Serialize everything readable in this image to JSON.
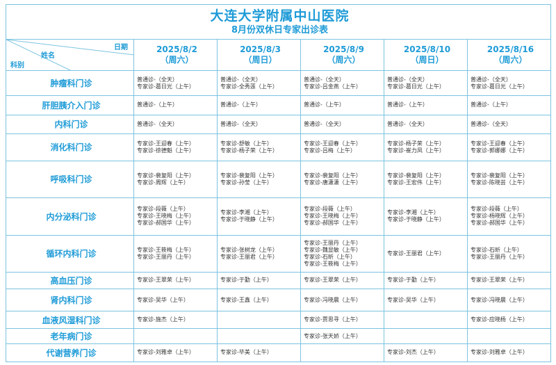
{
  "header": {
    "hospital": "大连大学附属中山医院",
    "subtitle": "8月份双休日专家出诊表"
  },
  "corner": {
    "date_label": "日期",
    "name_label": "姓名",
    "dept_label": "科别"
  },
  "dates": [
    {
      "date": "2025/8/2",
      "weekday": "（周六）"
    },
    {
      "date": "2025/8/3",
      "weekday": "（周日）"
    },
    {
      "date": "2025/8/9",
      "weekday": "（周六）"
    },
    {
      "date": "2025/8/10",
      "weekday": "（周日）"
    },
    {
      "date": "2025/8/16",
      "weekday": "（周六）"
    }
  ],
  "rows": [
    {
      "dept": "肿瘤科门诊",
      "cells": [
        [
          "普通诊-（全天）",
          "专家诊-葛日光（上午）"
        ],
        [
          "普通诊-（全天）",
          "专家诊-全秀莲（上午）"
        ],
        [
          "普通诊-（全天）",
          "专家诊-吕金燕（上午）"
        ],
        [
          "普通诊-（全天）",
          "专家诊-葛日光（上午）"
        ],
        [
          "普通诊-（全天）",
          "专家诊-葛日光（上午）"
        ]
      ]
    },
    {
      "dept": "肝胆胰介入门诊",
      "cells": [
        [
          "普通诊-（上午）"
        ],
        [
          "普通诊-（上午）"
        ],
        [
          "普通诊-（上午）"
        ],
        [
          "普通诊-（上午）"
        ],
        [
          "普通诊-（上午）"
        ]
      ]
    },
    {
      "dept": "内科门诊",
      "cells": [
        [
          "普通诊-（全天）"
        ],
        [
          "普通诊-（全天）"
        ],
        [
          "普通诊-（全天）"
        ],
        [
          "普通诊-（全天）"
        ],
        [
          "普通诊-（全天）"
        ]
      ]
    },
    {
      "dept": "消化科门诊",
      "cells": [
        [
          "专家诊-王迎春（上午）",
          "专家诊-徐德魁（上午）"
        ],
        [
          "专家诊-舒敏（上午）",
          "专家诊-杨子荣（上午）"
        ],
        [
          "专家诊-王迎春（上午）",
          "专家诊-吕梅（上午）"
        ],
        [
          "专家诊-杨子荣（上午）",
          "专家诊-崔力凤（上午）"
        ],
        [
          "专家诊-王迎春（上午）",
          "专家诊-郭娜娜（上午）"
        ]
      ]
    },
    {
      "dept": "呼吸科门诊",
      "cells": [
        [
          "专家诊-裴复阳（上午）",
          "专家诊-周辉（上午）"
        ],
        [
          "专家诊-裴复阳（上午）",
          "专家诊-孙莹（上午）"
        ],
        [
          "专家诊-裴复阳（上午）",
          "专家诊-唐潇潇（上午）"
        ],
        [
          "专家诊-裴复阳（上午）",
          "专家诊-王宏伟（上午）"
        ],
        [
          "专家诊-裴复阳（上午）",
          "专家诊-陈晓芸（上午）"
        ]
      ]
    },
    {
      "dept": "内分泌科门诊",
      "cells": [
        [
          "专家诊-段薇（上午）",
          "专家诊-王晓梅（上午）",
          "专家诊-郝国华（上午）"
        ],
        [
          "专家诊-李湘（上午）",
          "专家诊-于晓静（上午）"
        ],
        [
          "专家诊-段薇（上午）",
          "专家诊-王晓梅（上午）",
          "专家诊-郝国华（上午）"
        ],
        [
          "专家诊-李湘（上午）",
          "专家诊-于晓静（上午）"
        ],
        [
          "专家诊-段薇（上午）",
          "专家诊-杨晓辉（上午）",
          "专家诊-郝国华（上午）"
        ]
      ]
    },
    {
      "dept": "循环内科门诊",
      "cells": [
        [
          "专家诊-王筱梅（上午）",
          "专家诊-王丽丹（上午）"
        ],
        [
          "专家诊-张树龙（上午）",
          "专家诊-王丽君（上午）"
        ],
        [
          "专家诊-王丽丹（上午）",
          "专家诊-魏显敏（上午）",
          "专家诊-石昕（上午）",
          "专家诊-王筱梅（上午）"
        ],
        [
          "专家诊-王丽君（上午）"
        ],
        [
          "专家诊-石昕（上午）",
          "专家诊-王丽丹（上午）"
        ]
      ]
    },
    {
      "dept": "高血压门诊",
      "cells": [
        [
          "专家诊-王翠荣（上午）"
        ],
        [
          "专家诊-于勤（上午）"
        ],
        [
          "专家诊-王翠荣（上午）"
        ],
        [
          "专家诊-于勤（上午）"
        ],
        [
          "专家诊-王翠荣（上午）"
        ]
      ]
    },
    {
      "dept": "肾内科门诊",
      "cells": [
        [
          "专家诊-吴华（上午）"
        ],
        [
          "专家诊-王鑫（上午）"
        ],
        [
          "专家诊-冯晓晨（上午）"
        ],
        [
          "专家诊-吴华（上午）"
        ],
        [
          "专家诊-冯晓晨（上午）"
        ]
      ]
    },
    {
      "dept": "血液风湿科门诊",
      "cells": [
        [
          "专家诊-施杰（上午）"
        ],
        [],
        [
          "专家诊-贾思寻（上午）"
        ],
        [],
        [
          "专家诊-应晓杨（上午）"
        ]
      ]
    },
    {
      "dept": "老年病门诊",
      "cells": [
        [],
        [],
        [
          "专家诊-张天娇（上午）"
        ],
        [],
        []
      ]
    },
    {
      "dept": "代谢营养门诊",
      "cells": [
        [
          "专家诊-刘雅卓（上午）"
        ],
        [
          "专家诊-毕美（上午）"
        ],
        [],
        [
          "专家诊-刘杰（上午）"
        ],
        [
          "专家诊-刘雅卓（上午）"
        ]
      ]
    }
  ]
}
